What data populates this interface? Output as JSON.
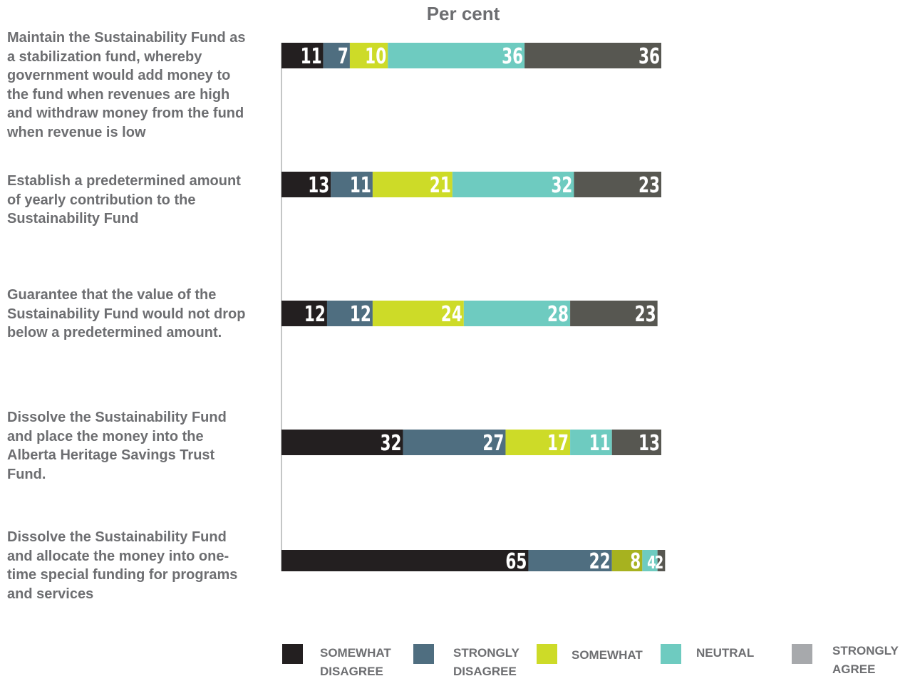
{
  "chart_data": {
    "type": "bar",
    "orientation": "horizontal",
    "stacked": true,
    "title": "Per cent",
    "categories": [
      "Maintain the Sustainability Fund as a stabilization fund, whereby government would add money to the fund when revenues are high and withdraw money from the fund when revenue is low",
      "Establish a predetermined amount of yearly contribution to the Sustainability Fund",
      "Guarantee that the value of the Sustainability Fund would not drop below a predetermined amount.",
      "Dissolve the Sustainability Fund and place the money into the Alberta Heritage Savings Trust Fund.",
      "Dissolve the Sustainability Fund and allocate the money into one-time special funding for programs and services"
    ],
    "series": [
      {
        "name": "SOMEWHAT DISAGREE",
        "color": "#231f20",
        "values": [
          11,
          13,
          12,
          32,
          65
        ]
      },
      {
        "name": "STRONGLY DISAGREE",
        "color": "#4f6e80",
        "values": [
          7,
          11,
          12,
          27,
          22
        ]
      },
      {
        "name": "SOMEWHAT",
        "color": "#cddb28",
        "values": [
          10,
          21,
          24,
          17,
          8
        ]
      },
      {
        "name": "NEUTRAL",
        "color": "#6ecbc0",
        "values": [
          36,
          32,
          28,
          11,
          4
        ]
      },
      {
        "name": "STRONGLY AGREE",
        "color": "#575751",
        "values": [
          36,
          23,
          23,
          13,
          2
        ]
      }
    ],
    "overrides": [
      {
        "category": 4,
        "series": 2,
        "color": "#a7b21f"
      }
    ],
    "legend_placement": "bottom",
    "grid": false,
    "legend_swatch_colors": [
      "#231f20",
      "#4f6e80",
      "#cddb28",
      "#6ecbc0",
      "#a7a9ac"
    ]
  },
  "legend": [
    {
      "line1": "SOMEWHAT",
      "line2": "DISAGREE"
    },
    {
      "line1": "STRONGLY",
      "line2": "DISAGREE"
    },
    {
      "line1": "SOMEWHAT",
      "line2": ""
    },
    {
      "line1": "NEUTRAL",
      "line2": ""
    },
    {
      "line1": "STRONGLY",
      "line2": "AGREE"
    }
  ]
}
